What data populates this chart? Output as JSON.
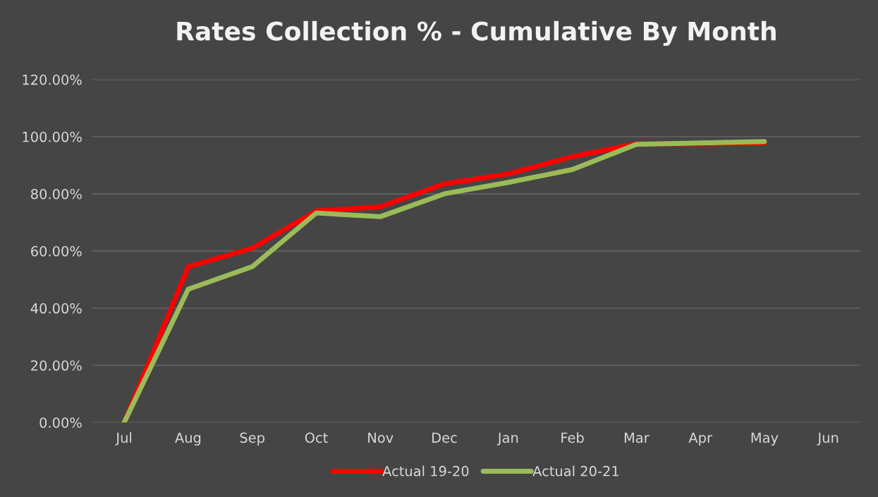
{
  "chart_data": {
    "type": "line",
    "title": "Rates Collection % - Cumulative By Month",
    "categories": [
      "Jul",
      "Aug",
      "Sep",
      "Oct",
      "Nov",
      "Dec",
      "Jan",
      "Feb",
      "Mar",
      "Apr",
      "May",
      "Jun"
    ],
    "series": [
      {
        "name": "Actual 19-20",
        "color": "#ff0000",
        "values": [
          0,
          54.5,
          61,
          74,
          75.5,
          83.5,
          87,
          93,
          97.5,
          97.5,
          97.7,
          null
        ]
      },
      {
        "name": "Actual 20-21",
        "color": "#9bbb59",
        "values": [
          0,
          46.6,
          54.5,
          73.3,
          72,
          80,
          84,
          88.5,
          97.3,
          97.8,
          98.3,
          null
        ]
      }
    ],
    "ylim": [
      0,
      120
    ],
    "yticks": [
      {
        "value": 0,
        "label": "0.00%"
      },
      {
        "value": 20,
        "label": "20.00%"
      },
      {
        "value": 40,
        "label": "40.00%"
      },
      {
        "value": 60,
        "label": "60.00%"
      },
      {
        "value": 80,
        "label": "80.00%"
      },
      {
        "value": 100,
        "label": "100.00%"
      },
      {
        "value": 120,
        "label": "120.00%"
      }
    ],
    "grid": "y",
    "legend": "bottom",
    "marker": "none",
    "line_style": "solid"
  }
}
